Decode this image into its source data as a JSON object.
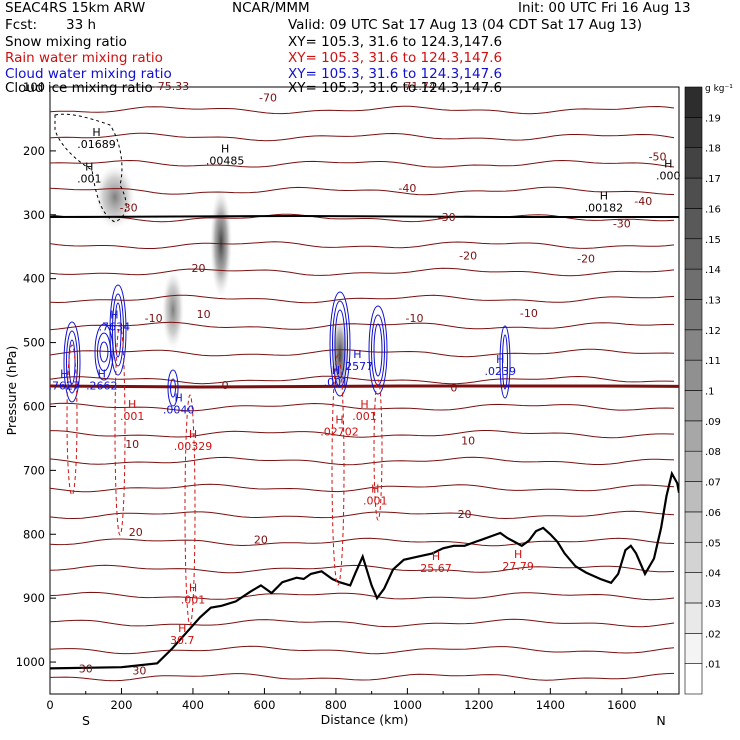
{
  "header": {
    "model": "SEAC4RS 15km ARW",
    "center": "NCAR/MMM",
    "init": "Init: 00 UTC Fri 16 Aug 13",
    "fcst_label": "Fcst:",
    "fcst_value": "33 h",
    "valid": "Valid: 09 UTC Sat 17 Aug 13 (04 CDT Sat 17 Aug 13)"
  },
  "legend": [
    {
      "name": "Snow mixing ratio",
      "xy": "XY= 105.3, 31.6 to 124.3,147.6",
      "color": "#000000"
    },
    {
      "name": "Rain water mixing ratio",
      "xy": "XY= 105.3, 31.6 to 124.3,147.6",
      "color": "#d01010"
    },
    {
      "name": "Cloud water mixing ratio",
      "xy": "XY= 105.3, 31.6 to 124.3,147.6",
      "color": "#1010d0"
    },
    {
      "name": "Cloud ice mixing ratio",
      "xy": "XY= 105.3, 31.6 to 124.3,147.6",
      "color": "#000000"
    }
  ],
  "chart_data": {
    "type": "cross-section",
    "xlabel": "Distance (km)",
    "ylabel": "Pressure (hPa)",
    "xlim": [
      0,
      1760
    ],
    "ylim": [
      1050,
      100
    ],
    "x_ticks": [
      0,
      200,
      400,
      600,
      800,
      1000,
      1200,
      1400,
      1600
    ],
    "y_ticks": [
      100,
      200,
      300,
      400,
      500,
      600,
      700,
      800,
      900,
      1000
    ],
    "x_end_labels": {
      "left": "S",
      "right": "N"
    },
    "colorbar": {
      "unit": "g kg⁻¹",
      "ticks": [
        ".01",
        ".02",
        ".03",
        ".04",
        ".05",
        ".06",
        ".07",
        ".08",
        ".09",
        ".1",
        ".11",
        ".12",
        ".13",
        ".14",
        ".15",
        ".16",
        ".17",
        ".18",
        ".19"
      ]
    },
    "isotherms": [
      {
        "label": "-75.33",
        "x": 340,
        "p": 100
      },
      {
        "label": "-71.74",
        "x": 1030,
        "p": 100
      },
      {
        "label": "-70",
        "x": 610,
        "p": 118
      },
      {
        "label": "-50",
        "x": 1700,
        "p": 210
      },
      {
        "label": "-40",
        "x": 1000,
        "p": 260
      },
      {
        "label": "-40",
        "x": 1660,
        "p": 280
      },
      {
        "label": "-30",
        "x": 220,
        "p": 290
      },
      {
        "label": "-30",
        "x": 1110,
        "p": 305
      },
      {
        "label": "-30",
        "x": 1600,
        "p": 315
      },
      {
        "label": "-20",
        "x": 410,
        "p": 385
      },
      {
        "label": "-20",
        "x": 1170,
        "p": 365
      },
      {
        "label": "-20",
        "x": 1500,
        "p": 370
      },
      {
        "label": "-10",
        "x": 290,
        "p": 463
      },
      {
        "label": "-10",
        "x": 1020,
        "p": 463
      },
      {
        "label": "-10",
        "x": 1340,
        "p": 455
      },
      {
        "label": "10",
        "x": 430,
        "p": 457
      },
      {
        "label": "0",
        "x": 490,
        "p": 568
      },
      {
        "label": "0",
        "x": 1130,
        "p": 572
      },
      {
        "label": "10",
        "x": 230,
        "p": 660
      },
      {
        "label": "10",
        "x": 1170,
        "p": 655
      },
      {
        "label": "20",
        "x": 240,
        "p": 798
      },
      {
        "label": "20",
        "x": 590,
        "p": 810
      },
      {
        "label": "20",
        "x": 1160,
        "p": 770
      },
      {
        "label": "30",
        "x": 100,
        "p": 1012
      },
      {
        "label": "30",
        "x": 250,
        "p": 1015
      }
    ],
    "maxima": [
      {
        "label": ".01689",
        "x": 130,
        "p": 192
      },
      {
        "label": ".00485",
        "x": 490,
        "p": 218
      },
      {
        "label": ".00182",
        "x": 1550,
        "p": 292
      },
      {
        "label": ".000",
        "x": 1730,
        "p": 242
      },
      {
        "label": ".7634",
        "x": 180,
        "p": 478
      },
      {
        "label": ".7627",
        "x": 40,
        "p": 570
      },
      {
        "label": ".2662",
        "x": 145,
        "p": 570
      },
      {
        "label": ".0040",
        "x": 360,
        "p": 608
      },
      {
        "label": ".2577",
        "x": 860,
        "p": 540
      },
      {
        "label": ".0239",
        "x": 1260,
        "p": 548
      },
      {
        "label": ".001",
        "x": 110,
        "p": 246
      },
      {
        "label": ".001",
        "x": 800,
        "p": 565
      },
      {
        "label": ".001",
        "x": 880,
        "p": 618
      },
      {
        "label": ".001",
        "x": 230,
        "p": 618
      },
      {
        "label": ".00329",
        "x": 400,
        "p": 665
      },
      {
        "label": ".02702",
        "x": 810,
        "p": 642
      },
      {
        "label": ".001",
        "x": 910,
        "p": 750
      },
      {
        "label": ".001",
        "x": 400,
        "p": 905
      },
      {
        "label": "30.7",
        "x": 370,
        "p": 969
      },
      {
        "label": "25.67",
        "x": 1080,
        "p": 856
      },
      {
        "label": "27.79",
        "x": 1310,
        "p": 853
      }
    ],
    "terrain": [
      [
        0,
        1010
      ],
      [
        200,
        1008
      ],
      [
        300,
        1002
      ],
      [
        340,
        980
      ],
      [
        380,
        955
      ],
      [
        420,
        930
      ],
      [
        450,
        915
      ],
      [
        480,
        912
      ],
      [
        520,
        905
      ],
      [
        560,
        890
      ],
      [
        590,
        880
      ],
      [
        620,
        892
      ],
      [
        650,
        875
      ],
      [
        690,
        868
      ],
      [
        710,
        870
      ],
      [
        730,
        862
      ],
      [
        760,
        858
      ],
      [
        790,
        870
      ],
      [
        810,
        875
      ],
      [
        840,
        880
      ],
      [
        855,
        860
      ],
      [
        875,
        835
      ],
      [
        900,
        880
      ],
      [
        915,
        900
      ],
      [
        935,
        885
      ],
      [
        960,
        855
      ],
      [
        990,
        840
      ],
      [
        1030,
        835
      ],
      [
        1070,
        830
      ],
      [
        1100,
        822
      ],
      [
        1130,
        818
      ],
      [
        1160,
        818
      ],
      [
        1190,
        812
      ],
      [
        1210,
        808
      ],
      [
        1240,
        802
      ],
      [
        1260,
        798
      ],
      [
        1280,
        806
      ],
      [
        1300,
        812
      ],
      [
        1320,
        818
      ],
      [
        1340,
        810
      ],
      [
        1360,
        795
      ],
      [
        1380,
        790
      ],
      [
        1400,
        800
      ],
      [
        1420,
        812
      ],
      [
        1440,
        830
      ],
      [
        1470,
        850
      ],
      [
        1500,
        860
      ],
      [
        1540,
        870
      ],
      [
        1570,
        876
      ],
      [
        1590,
        862
      ],
      [
        1610,
        825
      ],
      [
        1625,
        818
      ],
      [
        1640,
        830
      ],
      [
        1665,
        862
      ],
      [
        1690,
        838
      ],
      [
        1710,
        790
      ],
      [
        1725,
        740
      ],
      [
        1740,
        705
      ],
      [
        1755,
        720
      ],
      [
        1760,
        735
      ]
    ]
  }
}
